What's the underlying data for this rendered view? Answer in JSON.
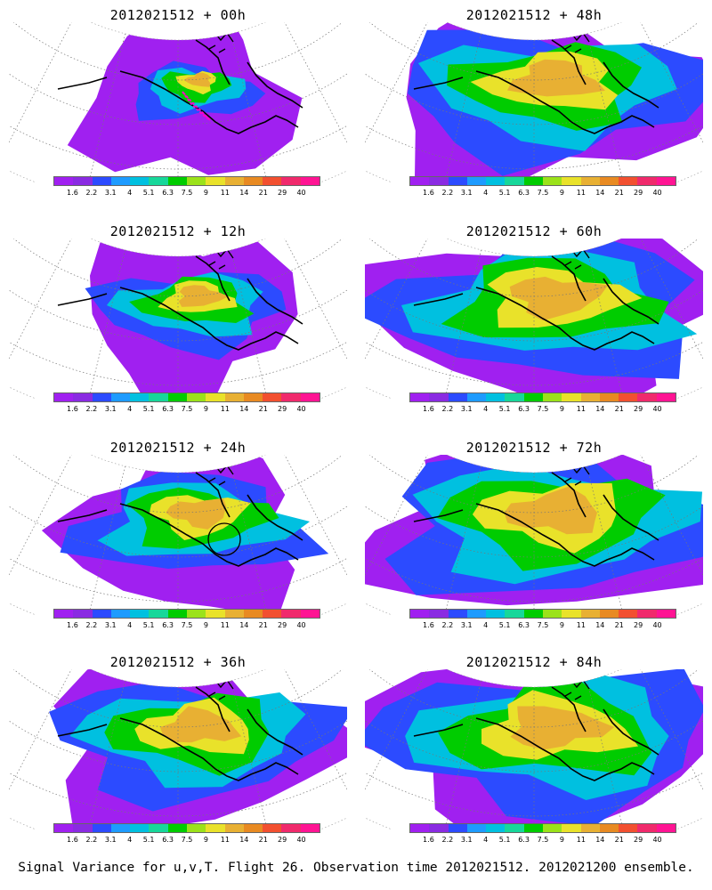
{
  "footer": "Signal Variance for u,v,T. Flight 26. Observation time 2012021512. 2012021200 ensemble.",
  "colorbar": {
    "ticks": [
      "1.6",
      "2.2",
      "3.1",
      "4",
      "5.1",
      "6.3",
      "7.5",
      "9",
      "11",
      "14",
      "21",
      "29",
      "40"
    ],
    "colors": [
      "#a020f0",
      "#8a2be2",
      "#2c4bff",
      "#1e9bff",
      "#00c0e0",
      "#17d79a",
      "#00cc00",
      "#9be21a",
      "#e9e22a",
      "#e8b033",
      "#e88a22",
      "#f25030",
      "#f02a6c",
      "#ff1493"
    ]
  },
  "panels": [
    {
      "id": "p00",
      "title": "2012021512 + 00h",
      "intensity": 0.25,
      "flight_track": true,
      "circle_marker": false
    },
    {
      "id": "p48",
      "title": "2012021512 + 48h",
      "intensity": 0.85,
      "flight_track": false,
      "circle_marker": false
    },
    {
      "id": "p12",
      "title": "2012021512 + 12h",
      "intensity": 0.45,
      "flight_track": false,
      "circle_marker": false
    },
    {
      "id": "p60",
      "title": "2012021512 + 60h",
      "intensity": 0.9,
      "flight_track": false,
      "circle_marker": false
    },
    {
      "id": "p24",
      "title": "2012021512 + 24h",
      "intensity": 0.6,
      "flight_track": false,
      "circle_marker": true
    },
    {
      "id": "p72",
      "title": "2012021512 + 72h",
      "intensity": 0.95,
      "flight_track": false,
      "circle_marker": false
    },
    {
      "id": "p36",
      "title": "2012021512 + 36h",
      "intensity": 0.75,
      "flight_track": false,
      "circle_marker": false
    },
    {
      "id": "p84",
      "title": "2012021512 + 84h",
      "intensity": 0.95,
      "flight_track": false,
      "circle_marker": false
    }
  ]
}
